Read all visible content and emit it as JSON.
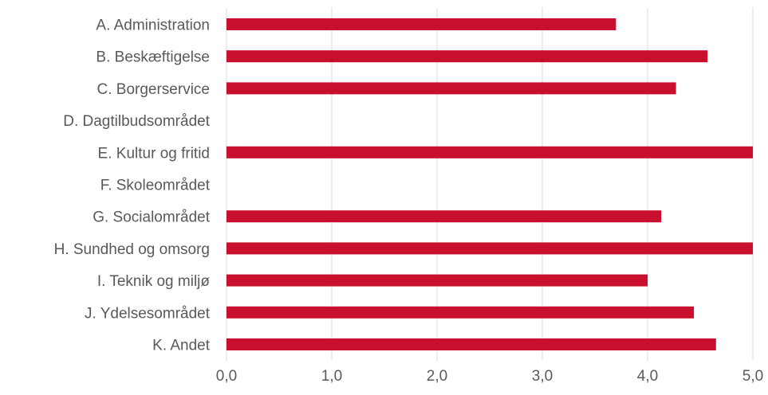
{
  "chart_data": {
    "type": "bar",
    "orientation": "horizontal",
    "categories": [
      "A. Administration",
      "B. Beskæftigelse",
      "C. Borgerservice",
      "D. Dagtilbudsområdet",
      "E. Kultur og fritid",
      "F. Skoleområdet",
      "G. Socialområdet",
      "H. Sundhed og omsorg",
      "I. Teknik og miljø",
      "J. Ydelsesområdet",
      "K. Andet"
    ],
    "values": [
      3.7,
      4.57,
      4.27,
      null,
      5.0,
      null,
      4.13,
      5.0,
      4.0,
      4.44,
      4.65
    ],
    "xlim": [
      0,
      5
    ],
    "x_ticks": [
      "0,0",
      "1,0",
      "2,0",
      "3,0",
      "4,0",
      "5,0"
    ],
    "grid": true,
    "bar_color": "#c8102e",
    "grid_color": "#d9d9d9",
    "label_color": "#595959",
    "title": "",
    "xlabel": "",
    "ylabel": ""
  }
}
